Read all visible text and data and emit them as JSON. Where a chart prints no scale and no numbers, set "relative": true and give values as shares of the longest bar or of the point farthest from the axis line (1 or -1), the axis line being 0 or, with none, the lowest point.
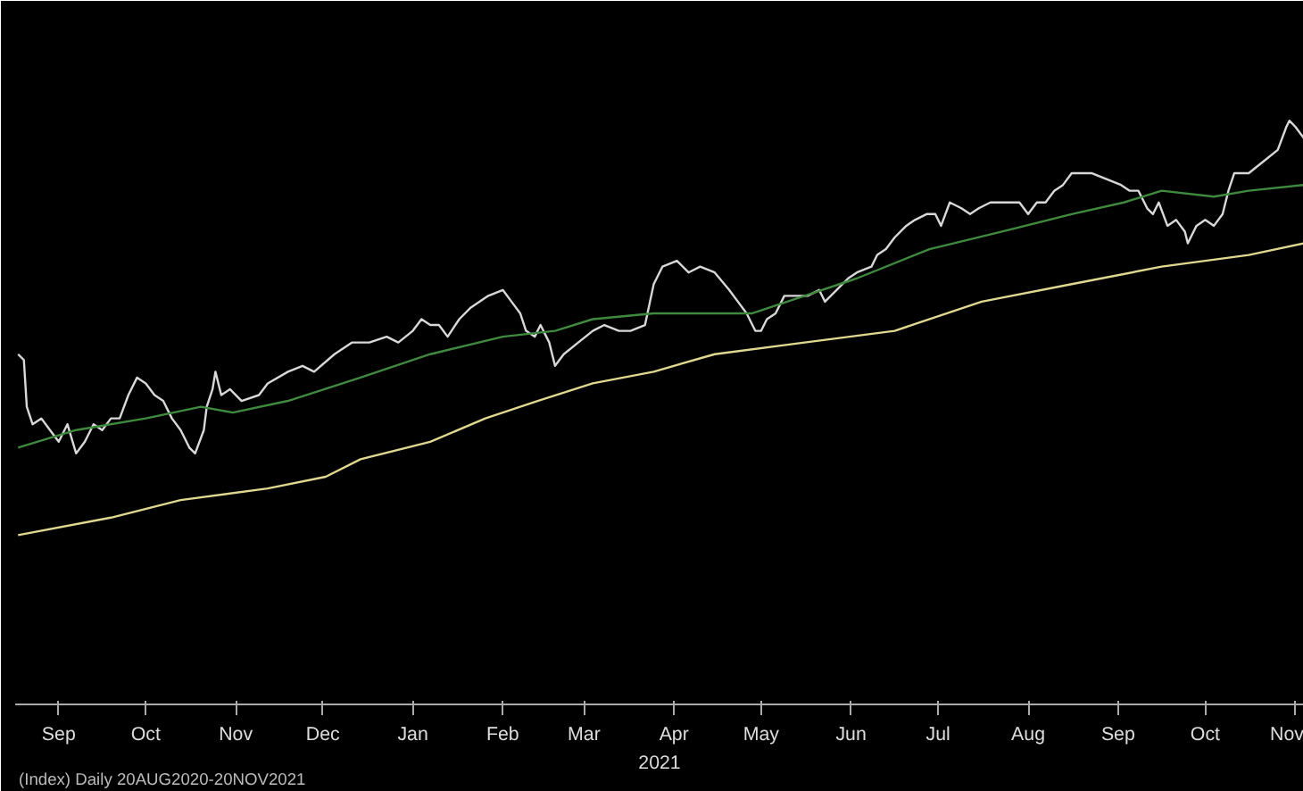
{
  "chart_data": {
    "type": "line",
    "relative": true,
    "xlabel": "2021",
    "annotations": [
      "(Index) Daily 20AUG2020-20NOV2021"
    ],
    "xlim": [
      "2020-08-31",
      "2021-11-18"
    ],
    "xticks": [
      {
        "value": "2020-09-15",
        "label": "Sep"
      },
      {
        "value": "2020-10-15",
        "label": "Oct"
      },
      {
        "value": "2020-11-15",
        "label": "Nov"
      },
      {
        "value": "2020-12-15",
        "label": "Dec"
      },
      {
        "value": "2021-01-15",
        "label": "Jan"
      },
      {
        "value": "2021-02-15",
        "label": "Feb"
      },
      {
        "value": "2021-03-15",
        "label": "Mar"
      },
      {
        "value": "2021-04-15",
        "label": "Apr"
      },
      {
        "value": "2021-05-15",
        "label": "May"
      },
      {
        "value": "2021-06-15",
        "label": "Jun"
      },
      {
        "value": "2021-07-15",
        "label": "Jul"
      },
      {
        "value": "2021-08-15",
        "label": "Aug"
      },
      {
        "value": "2021-09-15",
        "label": "Sep"
      },
      {
        "value": "2021-10-15",
        "label": "Oct"
      },
      {
        "value": "2021-11-15",
        "label": "Nov"
      }
    ],
    "grid": false,
    "series": [
      {
        "color": "#d8d8d8",
        "x": [
          "2020-09-01",
          "2020-09-03",
          "2020-09-04",
          "2020-09-06",
          "2020-09-09",
          "2020-09-12",
          "2020-09-15",
          "2020-09-18",
          "2020-09-21",
          "2020-09-24",
          "2020-09-27",
          "2020-09-30",
          "2020-10-03",
          "2020-10-06",
          "2020-10-09",
          "2020-10-12",
          "2020-10-15",
          "2020-10-18",
          "2020-10-21",
          "2020-10-24",
          "2020-10-27",
          "2020-10-30",
          "2020-11-01",
          "2020-11-04",
          "2020-11-05",
          "2020-11-07",
          "2020-11-08",
          "2020-11-10",
          "2020-11-13",
          "2020-11-17",
          "2020-11-23",
          "2020-11-26",
          "2020-12-03",
          "2020-12-08",
          "2020-12-12",
          "2020-12-19",
          "2020-12-25",
          "2020-12-31",
          "2021-01-06",
          "2021-01-10",
          "2021-01-15",
          "2021-01-18",
          "2021-01-21",
          "2021-01-24",
          "2021-01-27",
          "2021-01-31",
          "2021-02-04",
          "2021-02-10",
          "2021-02-15",
          "2021-02-18",
          "2021-02-21",
          "2021-02-23",
          "2021-02-26",
          "2021-02-28",
          "2021-03-03",
          "2021-03-05",
          "2021-03-08",
          "2021-03-13",
          "2021-03-18",
          "2021-03-22",
          "2021-03-27",
          "2021-03-31",
          "2021-04-05",
          "2021-04-08",
          "2021-04-11",
          "2021-04-16",
          "2021-04-20",
          "2021-04-24",
          "2021-04-29",
          "2021-05-04",
          "2021-05-07",
          "2021-05-10",
          "2021-05-13",
          "2021-05-15",
          "2021-05-17",
          "2021-05-20",
          "2021-05-23",
          "2021-05-27",
          "2021-05-31",
          "2021-06-04",
          "2021-06-06",
          "2021-06-10",
          "2021-06-14",
          "2021-06-17",
          "2021-06-22",
          "2021-06-24",
          "2021-06-27",
          "2021-06-30",
          "2021-07-04",
          "2021-07-07",
          "2021-07-11",
          "2021-07-14",
          "2021-07-16",
          "2021-07-19",
          "2021-07-23",
          "2021-07-26",
          "2021-07-29",
          "2021-08-02",
          "2021-08-07",
          "2021-08-12",
          "2021-08-15",
          "2021-08-18",
          "2021-08-21",
          "2021-08-24",
          "2021-08-27",
          "2021-08-30",
          "2021-09-02",
          "2021-09-06",
          "2021-09-11",
          "2021-09-16",
          "2021-09-19",
          "2021-09-22",
          "2021-09-24",
          "2021-09-25",
          "2021-09-27",
          "2021-09-29",
          "2021-10-02",
          "2021-10-05",
          "2021-10-08",
          "2021-10-09",
          "2021-10-12",
          "2021-10-15",
          "2021-10-18",
          "2021-10-21",
          "2021-10-23",
          "2021-10-25",
          "2021-10-30",
          "2021-11-04",
          "2021-11-09",
          "2021-11-12",
          "2021-11-13",
          "2021-11-15",
          "2021-11-18"
        ],
        "values": [
          0.6,
          0.59,
          0.51,
          0.48,
          0.49,
          0.47,
          0.45,
          0.48,
          0.43,
          0.45,
          0.48,
          0.47,
          0.49,
          0.49,
          0.53,
          0.56,
          0.55,
          0.53,
          0.52,
          0.49,
          0.47,
          0.44,
          0.43,
          0.47,
          0.51,
          0.54,
          0.57,
          0.53,
          0.54,
          0.52,
          0.53,
          0.55,
          0.57,
          0.58,
          0.57,
          0.6,
          0.62,
          0.62,
          0.63,
          0.62,
          0.64,
          0.66,
          0.65,
          0.65,
          0.63,
          0.66,
          0.68,
          0.7,
          0.71,
          0.69,
          0.67,
          0.64,
          0.63,
          0.65,
          0.62,
          0.58,
          0.6,
          0.62,
          0.64,
          0.65,
          0.64,
          0.64,
          0.65,
          0.72,
          0.75,
          0.76,
          0.74,
          0.75,
          0.74,
          0.71,
          0.69,
          0.67,
          0.64,
          0.64,
          0.66,
          0.67,
          0.7,
          0.7,
          0.7,
          0.71,
          0.69,
          0.71,
          0.73,
          0.74,
          0.75,
          0.77,
          0.78,
          0.8,
          0.82,
          0.83,
          0.84,
          0.84,
          0.82,
          0.86,
          0.85,
          0.84,
          0.85,
          0.86,
          0.86,
          0.86,
          0.84,
          0.86,
          0.86,
          0.88,
          0.89,
          0.91,
          0.91,
          0.91,
          0.9,
          0.89,
          0.88,
          0.88,
          0.86,
          0.85,
          0.84,
          0.86,
          0.82,
          0.83,
          0.81,
          0.79,
          0.82,
          0.83,
          0.82,
          0.84,
          0.88,
          0.91,
          0.91,
          0.93,
          0.95,
          0.99,
          1,
          0.99,
          0.97
        ]
      },
      {
        "color": "#3f8a3f",
        "x": [
          "2020-09-01",
          "2020-09-21",
          "2020-10-15",
          "2020-11-03",
          "2020-11-14",
          "2020-12-03",
          "2020-12-28",
          "2021-01-21",
          "2021-02-15",
          "2021-03-05",
          "2021-03-18",
          "2021-04-08",
          "2021-04-29",
          "2021-05-12",
          "2021-05-30",
          "2021-06-17",
          "2021-07-12",
          "2021-08-06",
          "2021-08-30",
          "2021-09-17",
          "2021-09-30",
          "2021-10-18",
          "2021-10-30",
          "2021-11-18"
        ],
        "values": [
          0.44,
          0.47,
          0.49,
          0.51,
          0.5,
          0.52,
          0.56,
          0.6,
          0.63,
          0.64,
          0.66,
          0.67,
          0.67,
          0.67,
          0.7,
          0.73,
          0.78,
          0.81,
          0.84,
          0.86,
          0.88,
          0.87,
          0.88,
          0.89
        ]
      },
      {
        "color": "#e0d890",
        "x": [
          "2020-09-01",
          "2020-10-03",
          "2020-10-27",
          "2020-11-26",
          "2020-12-16",
          "2020-12-28",
          "2021-01-21",
          "2021-02-09",
          "2021-02-27",
          "2021-03-18",
          "2021-04-08",
          "2021-04-29",
          "2021-05-30",
          "2021-06-30",
          "2021-07-30",
          "2021-08-30",
          "2021-09-30",
          "2021-10-30",
          "2021-11-18"
        ],
        "values": [
          0.29,
          0.32,
          0.35,
          0.37,
          0.39,
          0.42,
          0.45,
          0.49,
          0.52,
          0.55,
          0.57,
          0.6,
          0.62,
          0.64,
          0.69,
          0.72,
          0.75,
          0.77,
          0.79
        ]
      }
    ]
  }
}
